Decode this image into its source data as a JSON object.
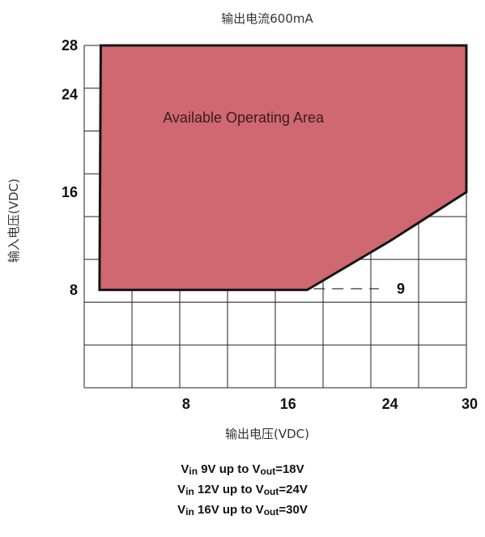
{
  "chart_data": {
    "type": "area",
    "title": "输出电流600mA",
    "xlabel": "输出电压(VDC)",
    "ylabel": "输入电压(VDC)",
    "xlim": [
      0,
      30
    ],
    "ylim": [
      0,
      28
    ],
    "x_ticks": [
      8,
      16,
      24,
      30
    ],
    "y_ticks": [
      8,
      16,
      24,
      28
    ],
    "grid": true,
    "region": {
      "label": "Available Operating Area",
      "color": "#cf6870",
      "boundary": [
        {
          "x": 1.3,
          "y": 28
        },
        {
          "x": 30,
          "y": 28
        },
        {
          "x": 30,
          "y": 16
        },
        {
          "x": 24,
          "y": 12
        },
        {
          "x": 17.5,
          "y": 8
        },
        {
          "x": 1.2,
          "y": 8
        }
      ]
    },
    "annotation": {
      "text": "9",
      "x": 18,
      "y": 8.1
    }
  },
  "notes": [
    {
      "v1": "V",
      "s1": "in",
      "mid": " 9V up to V",
      "s2": "out",
      "end": "=18V"
    },
    {
      "v1": "V",
      "s1": "in",
      "mid": " 12V up to V",
      "s2": "out",
      "end": "=24V"
    },
    {
      "v1": "V",
      "s1": "in",
      "mid": " 16V up to V",
      "s2": "out",
      "end": "=30V"
    }
  ]
}
